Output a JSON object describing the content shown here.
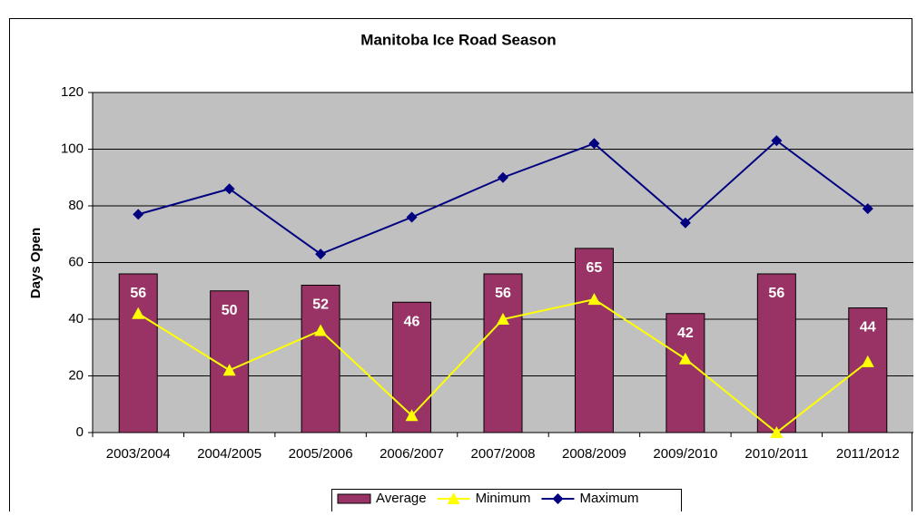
{
  "chart_data": {
    "type": "bar",
    "title": "Manitoba Ice Road Season",
    "y_label": "Days Open",
    "categories": [
      "2003/2004",
      "2004/2005",
      "2005/2006",
      "2006/2007",
      "2007/2008",
      "2008/2009",
      "2009/2010",
      "2010/2011",
      "2011/2012"
    ],
    "series": [
      {
        "name": "Average",
        "type": "bar",
        "color": "#993366",
        "values": [
          56,
          50,
          52,
          46,
          56,
          65,
          42,
          56,
          44
        ],
        "data_labels": true
      },
      {
        "name": "Minimum",
        "type": "line",
        "marker": "triangle",
        "color": "#ffff00",
        "values": [
          42,
          22,
          36,
          6,
          40,
          47,
          26,
          0,
          25
        ]
      },
      {
        "name": "Maximum",
        "type": "line",
        "marker": "diamond",
        "color": "#000080",
        "values": [
          77,
          86,
          63,
          76,
          90,
          102,
          74,
          103,
          79
        ]
      }
    ],
    "ylim": [
      0,
      120
    ],
    "yticks": [
      0,
      20,
      40,
      60,
      80,
      100,
      120
    ],
    "grid": true,
    "plot_background": "#c0c0c0",
    "legend": "bottom"
  }
}
